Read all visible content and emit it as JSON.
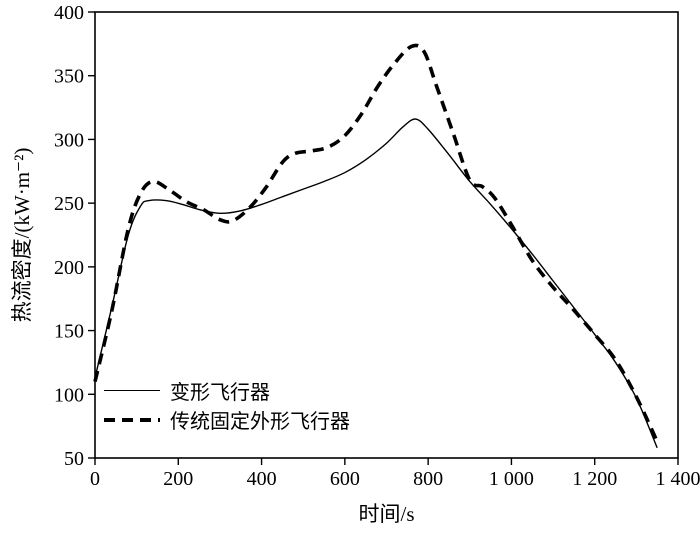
{
  "chart_data": {
    "type": "line",
    "title": "",
    "xlabel": "时间/s",
    "ylabel": "热流密度/(kW·m⁻²)",
    "xlim": [
      0,
      1400
    ],
    "ylim": [
      50,
      400
    ],
    "grid": false,
    "legend_position": "lower-left",
    "axis_color": "#000000",
    "xticks": {
      "values": [
        0,
        200,
        400,
        600,
        800,
        1000,
        1200,
        1400
      ],
      "labels": [
        "0",
        "200",
        "400",
        "600",
        "800",
        "1 000",
        "1 200",
        "1 400"
      ]
    },
    "yticks": {
      "values": [
        50,
        100,
        150,
        200,
        250,
        300,
        350,
        400
      ],
      "labels": [
        "50",
        "100",
        "150",
        "200",
        "250",
        "300",
        "350",
        "400"
      ]
    },
    "series": [
      {
        "name": "变形飞行器",
        "style": "solid",
        "color": "#000000",
        "width": 1.4,
        "dash": "",
        "x": [
          0,
          40,
          80,
          110,
          130,
          170,
          210,
          250,
          300,
          350,
          400,
          450,
          500,
          550,
          600,
          650,
          700,
          740,
          770,
          800,
          850,
          900,
          950,
          1000,
          1050,
          1100,
          1150,
          1200,
          1250,
          1300,
          1350
        ],
        "y": [
          113,
          168,
          225,
          248,
          252,
          252,
          249,
          245,
          242,
          244,
          249,
          255,
          261,
          267,
          274,
          284,
          297,
          310,
          316,
          308,
          288,
          267,
          249,
          230,
          210,
          189,
          168,
          147,
          125,
          97,
          58
        ]
      },
      {
        "name": "传统固定外形飞行器",
        "style": "dashed",
        "color": "#000000",
        "width": 3.6,
        "dash": "11 7",
        "x": [
          0,
          40,
          80,
          110,
          140,
          180,
          220,
          260,
          300,
          330,
          370,
          410,
          450,
          480,
          520,
          560,
          600,
          640,
          680,
          720,
          760,
          790,
          820,
          860,
          900,
          930,
          960,
          1000,
          1050,
          1100,
          1150,
          1200,
          1250,
          1300,
          1350
        ],
        "y": [
          110,
          165,
          230,
          258,
          267,
          260,
          251,
          245,
          237,
          236,
          246,
          262,
          282,
          289,
          291,
          294,
          303,
          320,
          342,
          360,
          373,
          369,
          342,
          305,
          268,
          263,
          254,
          233,
          205,
          184,
          166,
          147,
          127,
          98,
          63
        ]
      }
    ]
  }
}
